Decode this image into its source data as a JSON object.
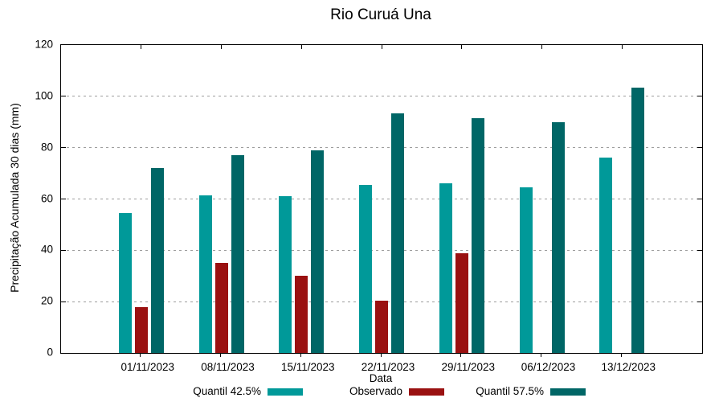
{
  "title": "Rio Curuá Una",
  "chart_data": {
    "type": "bar",
    "title": "Rio Curuá Una",
    "xlabel": "Data",
    "ylabel": "Precipitação Acumulada 30 dias (mm)",
    "ylim": [
      0,
      120
    ],
    "yticks": [
      0,
      20,
      40,
      60,
      80,
      100,
      120
    ],
    "grid": true,
    "grid_color": "#9e9e9e",
    "legend_position": "bottom",
    "categories": [
      "01/11/2023",
      "08/11/2023",
      "15/11/2023",
      "22/11/2023",
      "29/11/2023",
      "06/12/2023",
      "13/12/2023"
    ],
    "series": [
      {
        "name": "Quantil 42.5%",
        "color": "#009999",
        "values": [
          54.5,
          61.5,
          61,
          65.5,
          66,
          64.5,
          76
        ]
      },
      {
        "name": "Observado",
        "color": "#9a1111",
        "values": [
          18,
          35,
          30,
          20.5,
          39,
          null,
          null
        ]
      },
      {
        "name": "Quantil 57.5%",
        "color": "#006666",
        "values": [
          72,
          77,
          79,
          93.5,
          91.5,
          90,
          103.5
        ]
      }
    ]
  }
}
